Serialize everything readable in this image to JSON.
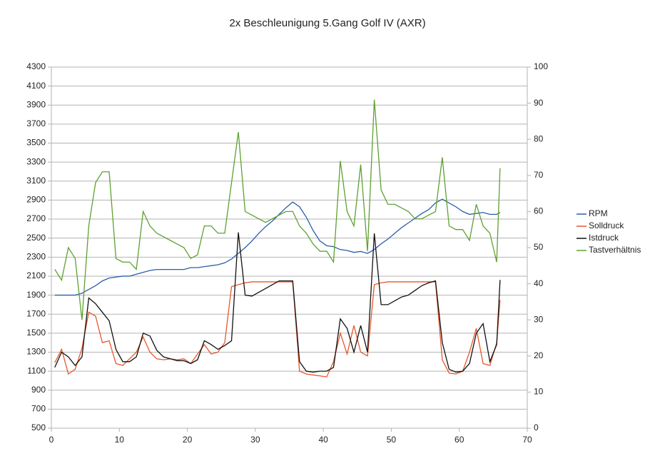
{
  "chart_data": {
    "type": "line",
    "title": "2x Beschleunigung 5.Gang Golf IV (AXR)",
    "x": [
      0.5,
      1.5,
      2.5,
      3.5,
      4.5,
      5.5,
      6.5,
      7.5,
      8.5,
      9.5,
      10.5,
      11.5,
      12.5,
      13.5,
      14.5,
      15.5,
      16.5,
      17.5,
      18.5,
      19.5,
      20.5,
      21.5,
      22.5,
      23.5,
      24.5,
      25.5,
      26.5,
      27.5,
      28.5,
      29.5,
      30.5,
      31.5,
      32.5,
      33.5,
      34.5,
      35.5,
      36.5,
      37.5,
      38.5,
      39.5,
      40.5,
      41.5,
      42.5,
      43.5,
      44.5,
      45.5,
      46.5,
      47.5,
      48.5,
      49.5,
      50.5,
      51.5,
      52.5,
      53.5,
      54.5,
      55.5,
      56.5,
      57.5,
      58.5,
      59.5,
      60.5,
      61.5,
      62.5,
      63.5,
      64.5,
      65.5,
      66
    ],
    "series": [
      {
        "name": "RPM",
        "color": "#2a5ea8",
        "values": [
          1900,
          1900,
          1900,
          1900,
          1920,
          1960,
          2000,
          2050,
          2080,
          2090,
          2100,
          2100,
          2120,
          2140,
          2160,
          2170,
          2170,
          2170,
          2170,
          2170,
          2190,
          2190,
          2200,
          2210,
          2220,
          2240,
          2280,
          2340,
          2400,
          2470,
          2550,
          2620,
          2680,
          2750,
          2820,
          2880,
          2830,
          2720,
          2580,
          2470,
          2420,
          2410,
          2380,
          2370,
          2350,
          2360,
          2340,
          2380,
          2440,
          2490,
          2550,
          2610,
          2660,
          2710,
          2760,
          2800,
          2870,
          2910,
          2870,
          2830,
          2780,
          2750,
          2760,
          2770,
          2750,
          2750,
          2770
        ]
      },
      {
        "name": "Solldruck",
        "color": "#e8562a",
        "values": [
          1190,
          1330,
          1070,
          1120,
          1340,
          1720,
          1680,
          1400,
          1420,
          1180,
          1160,
          1230,
          1300,
          1460,
          1300,
          1230,
          1220,
          1230,
          1220,
          1230,
          1180,
          1280,
          1380,
          1280,
          1300,
          1400,
          1990,
          2010,
          2030,
          2040,
          2040,
          2040,
          2040,
          2040,
          2040,
          2040,
          1100,
          1070,
          1060,
          1050,
          1040,
          1200,
          1500,
          1280,
          1580,
          1300,
          1260,
          2010,
          2030,
          2040,
          2040,
          2040,
          2040,
          2040,
          2040,
          2040,
          2040,
          1220,
          1080,
          1070,
          1100,
          1300,
          1550,
          1180,
          1160,
          1400,
          1850
        ]
      },
      {
        "name": "Istdruck",
        "color": "#111111",
        "values": [
          1140,
          1300,
          1250,
          1160,
          1250,
          1870,
          1810,
          1720,
          1630,
          1330,
          1200,
          1200,
          1250,
          1500,
          1470,
          1320,
          1250,
          1230,
          1210,
          1210,
          1180,
          1220,
          1420,
          1380,
          1330,
          1370,
          1420,
          2560,
          1900,
          1890,
          1930,
          1970,
          2010,
          2050,
          2050,
          2050,
          1200,
          1100,
          1090,
          1100,
          1100,
          1140,
          1650,
          1550,
          1300,
          1580,
          1300,
          2550,
          1800,
          1800,
          1840,
          1880,
          1900,
          1950,
          2000,
          2030,
          2050,
          1400,
          1120,
          1090,
          1100,
          1180,
          1500,
          1600,
          1200,
          1380,
          2060
        ]
      },
      {
        "name": "Tastverhältnis",
        "color": "#5fa030",
        "axis": "y2",
        "values": [
          44,
          41,
          50,
          47,
          30,
          56,
          68,
          71,
          71,
          47,
          46,
          46,
          44,
          60,
          56,
          54,
          53,
          52,
          51,
          50,
          47,
          48,
          56,
          56,
          54,
          54,
          68,
          82,
          60,
          59,
          58,
          57,
          58,
          59,
          60,
          60,
          56,
          54,
          51,
          49,
          49,
          46,
          74,
          60,
          56,
          73,
          49,
          91,
          66,
          62,
          62,
          61,
          60,
          58,
          58,
          59,
          60,
          75,
          56,
          55,
          55,
          52,
          62,
          56,
          54,
          46,
          72
        ]
      }
    ],
    "xlim": [
      0,
      70
    ],
    "xticks": [
      0,
      10,
      20,
      30,
      40,
      50,
      60,
      70
    ],
    "ylim": [
      500,
      4300
    ],
    "yticks": [
      500,
      700,
      900,
      1100,
      1300,
      1500,
      1700,
      1900,
      2100,
      2300,
      2500,
      2700,
      2900,
      3100,
      3300,
      3500,
      3700,
      3900,
      4100,
      4300
    ],
    "y2lim": [
      0,
      100
    ],
    "y2ticks": [
      0,
      10,
      20,
      30,
      40,
      50,
      60,
      70,
      80,
      90,
      100
    ],
    "grid": true,
    "legend": "right"
  }
}
